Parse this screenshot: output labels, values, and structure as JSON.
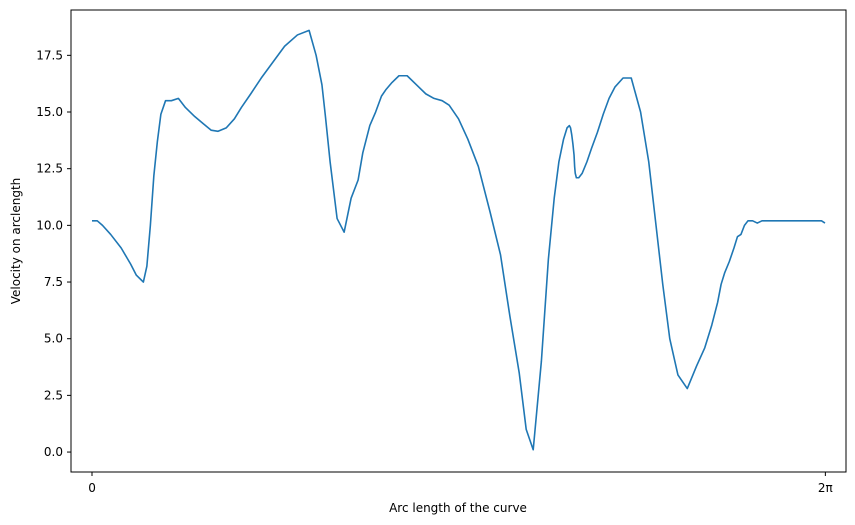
{
  "chart_data": {
    "type": "line",
    "xlabel": "Arc length of the curve",
    "ylabel": "Velocity on arclength",
    "xlim": [
      -0.18,
      6.46
    ],
    "ylim": [
      -0.88,
      19.5
    ],
    "x_ticks": [
      {
        "value": 0,
        "label": "0"
      },
      {
        "value": 6.2832,
        "label": "2π"
      }
    ],
    "y_ticks": [
      {
        "value": 0.0,
        "label": "0.0"
      },
      {
        "value": 2.5,
        "label": "2.5"
      },
      {
        "value": 5.0,
        "label": "5.0"
      },
      {
        "value": 7.5,
        "label": "7.5"
      },
      {
        "value": 10.0,
        "label": "10.0"
      },
      {
        "value": 12.5,
        "label": "12.5"
      },
      {
        "value": 15.0,
        "label": "15.0"
      },
      {
        "value": 17.5,
        "label": "17.5"
      }
    ],
    "grid": false,
    "series": [
      {
        "color": "#1f77b4",
        "x": [
          0.0,
          0.045,
          0.09,
          0.16,
          0.25,
          0.33,
          0.38,
          0.42,
          0.44,
          0.47,
          0.5,
          0.53,
          0.56,
          0.59,
          0.63,
          0.68,
          0.74,
          0.8,
          0.88,
          0.95,
          1.02,
          1.08,
          1.15,
          1.22,
          1.28,
          1.36,
          1.45,
          1.55,
          1.65,
          1.76,
          1.86,
          1.92,
          1.97,
          2.0,
          2.04,
          2.1,
          2.16,
          2.22,
          2.28,
          2.32,
          2.35,
          2.38,
          2.43,
          2.48,
          2.52,
          2.57,
          2.63,
          2.7,
          2.78,
          2.86,
          2.93,
          3.0,
          3.06,
          3.14,
          3.22,
          3.31,
          3.41,
          3.5,
          3.58,
          3.66,
          3.72,
          3.78,
          3.85,
          3.91,
          3.96,
          4.0,
          4.04,
          4.07,
          4.09,
          4.1,
          4.11,
          4.12,
          4.13,
          4.135,
          4.14,
          4.15,
          4.17,
          4.2,
          4.24,
          4.28,
          4.33,
          4.38,
          4.43,
          4.48,
          4.55,
          4.62,
          4.7,
          4.77,
          4.83,
          4.89,
          4.95,
          5.02,
          5.1,
          5.18,
          5.25,
          5.31,
          5.36,
          5.39,
          5.42,
          5.46,
          5.5,
          5.53,
          5.56,
          5.59,
          5.62,
          5.66,
          5.7,
          5.74,
          5.8,
          5.86,
          5.92,
          5.98,
          6.04,
          6.1,
          6.15,
          6.2,
          6.25,
          6.28
        ],
        "y": [
          10.2,
          10.2,
          10.0,
          9.6,
          9.0,
          8.3,
          7.8,
          7.6,
          7.5,
          8.2,
          10.0,
          12.2,
          13.7,
          14.9,
          15.5,
          15.5,
          15.6,
          15.2,
          14.8,
          14.5,
          14.2,
          14.15,
          14.3,
          14.7,
          15.2,
          15.8,
          16.5,
          17.2,
          17.9,
          18.4,
          18.6,
          17.5,
          16.2,
          14.8,
          12.8,
          10.3,
          9.7,
          11.2,
          12.0,
          13.2,
          13.8,
          14.4,
          15.0,
          15.7,
          16.0,
          16.3,
          16.6,
          16.6,
          16.2,
          15.8,
          15.6,
          15.5,
          15.3,
          14.7,
          13.8,
          12.6,
          10.6,
          8.7,
          6.0,
          3.5,
          1.0,
          0.1,
          4.0,
          8.5,
          11.2,
          12.8,
          13.8,
          14.3,
          14.4,
          14.3,
          14.0,
          13.6,
          13.1,
          12.6,
          12.3,
          12.1,
          12.1,
          12.3,
          12.8,
          13.4,
          14.1,
          14.9,
          15.6,
          16.1,
          16.5,
          16.5,
          15.0,
          12.8,
          10.1,
          7.4,
          5.0,
          3.4,
          2.8,
          3.8,
          4.6,
          5.6,
          6.6,
          7.4,
          7.9,
          8.4,
          9.0,
          9.5,
          9.6,
          10.0,
          10.2,
          10.2,
          10.1,
          10.2,
          10.2,
          10.2,
          10.2,
          10.2,
          10.2,
          10.2,
          10.2,
          10.2,
          10.2,
          10.1
        ]
      }
    ]
  }
}
